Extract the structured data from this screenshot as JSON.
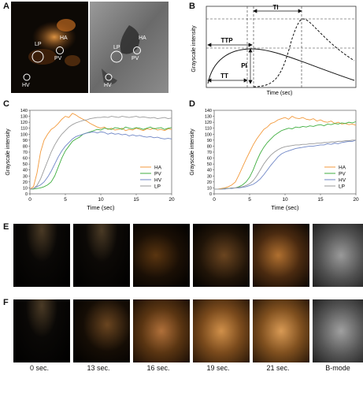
{
  "panels": {
    "A": {
      "letter": "A",
      "labels": [
        "HA",
        "LP",
        "PV",
        "HV",
        "HA",
        "LP",
        "PV",
        "HV"
      ]
    },
    "B": {
      "letter": "B",
      "ylabel": "Grayscale intensity",
      "xlabel": "Time (sec)",
      "labels": {
        "ti": "TI",
        "ttp": "TTP",
        "pi": "PI",
        "tt": "TT"
      }
    },
    "C": {
      "letter": "C"
    },
    "D": {
      "letter": "D"
    },
    "E": {
      "letter": "E"
    },
    "F": {
      "letter": "F"
    }
  },
  "timepoints": [
    "0 sec.",
    "13 sec.",
    "16 sec.",
    "19 sec.",
    "21 sec.",
    "B-mode"
  ],
  "colors": {
    "HA": "#f39a3c",
    "PV": "#3fae3f",
    "HV": "#6f86c6",
    "LP": "#9a9a9a"
  },
  "chart_data": [
    {
      "type": "line",
      "panel": "C",
      "xlabel": "Time (sec)",
      "ylabel": "Grayscale intensity",
      "xlim": [
        0,
        20
      ],
      "ylim": [
        0,
        140
      ],
      "xticks": [
        0,
        5,
        10,
        15,
        20
      ],
      "yticks": [
        0,
        10,
        20,
        30,
        40,
        50,
        60,
        70,
        80,
        90,
        100,
        110,
        120,
        130,
        140
      ],
      "legend": "bottom-right",
      "x": [
        0,
        0.5,
        1,
        1.5,
        2,
        2.5,
        3,
        3.5,
        4,
        4.5,
        5,
        5.5,
        6,
        6.5,
        7,
        7.5,
        8,
        8.5,
        9,
        9.5,
        10,
        10.5,
        11,
        11.5,
        12,
        12.5,
        13,
        13.5,
        14,
        14.5,
        15,
        15.5,
        16,
        16.5,
        17,
        17.5,
        18,
        18.5,
        19,
        19.5,
        20
      ],
      "series": [
        {
          "name": "HA",
          "values": [
            8,
            12,
            35,
            70,
            90,
            100,
            108,
            112,
            118,
            125,
            130,
            128,
            135,
            132,
            128,
            125,
            122,
            118,
            115,
            112,
            110,
            112,
            108,
            110,
            107,
            108,
            110,
            106,
            108,
            107,
            110,
            108,
            106,
            109,
            108,
            110,
            107,
            108,
            106,
            109,
            108
          ]
        },
        {
          "name": "PV",
          "values": [
            8,
            8,
            9,
            10,
            12,
            15,
            20,
            30,
            45,
            60,
            72,
            80,
            88,
            92,
            95,
            100,
            102,
            104,
            106,
            108,
            107,
            110,
            109,
            108,
            111,
            110,
            108,
            112,
            110,
            109,
            111,
            110,
            108,
            110,
            112,
            109,
            110,
            111,
            108,
            110,
            111
          ]
        },
        {
          "name": "HV",
          "values": [
            8,
            9,
            12,
            15,
            20,
            28,
            38,
            50,
            62,
            72,
            80,
            86,
            92,
            96,
            98,
            100,
            102,
            103,
            104,
            102,
            104,
            103,
            100,
            102,
            100,
            101,
            99,
            100,
            97,
            99,
            97,
            98,
            96,
            95,
            96,
            94,
            95,
            93,
            92,
            93,
            92
          ]
        },
        {
          "name": "LP",
          "values": [
            8,
            9,
            14,
            25,
            40,
            55,
            70,
            82,
            92,
            100,
            106,
            112,
            116,
            119,
            121,
            123,
            124,
            126,
            127,
            128,
            128,
            129,
            128,
            130,
            129,
            128,
            130,
            129,
            128,
            129,
            130,
            128,
            129,
            128,
            127,
            128,
            126,
            127,
            128,
            126,
            127
          ]
        }
      ]
    },
    {
      "type": "line",
      "panel": "D",
      "xlabel": "Time (sec)",
      "ylabel": "Grayscale intensity",
      "xlim": [
        0,
        20
      ],
      "ylim": [
        0,
        140
      ],
      "xticks": [
        0,
        5,
        10,
        15,
        20
      ],
      "yticks": [
        0,
        10,
        20,
        30,
        40,
        50,
        60,
        70,
        80,
        90,
        100,
        110,
        120,
        130,
        140
      ],
      "legend": "bottom-right",
      "x": [
        0,
        0.5,
        1,
        1.5,
        2,
        2.5,
        3,
        3.5,
        4,
        4.5,
        5,
        5.5,
        6,
        6.5,
        7,
        7.5,
        8,
        8.5,
        9,
        9.5,
        10,
        10.5,
        11,
        11.5,
        12,
        12.5,
        13,
        13.5,
        14,
        14.5,
        15,
        15.5,
        16,
        16.5,
        17,
        17.5,
        18,
        18.5,
        19,
        19.5,
        20
      ],
      "series": [
        {
          "name": "HA",
          "values": [
            8,
            8,
            9,
            10,
            12,
            15,
            20,
            32,
            45,
            58,
            70,
            82,
            92,
            100,
            108,
            112,
            118,
            120,
            124,
            126,
            128,
            125,
            130,
            127,
            126,
            128,
            125,
            124,
            126,
            122,
            124,
            121,
            120,
            122,
            118,
            120,
            117,
            118,
            116,
            117,
            115
          ]
        },
        {
          "name": "PV",
          "values": [
            8,
            8,
            8,
            9,
            9,
            10,
            10,
            12,
            15,
            20,
            28,
            40,
            55,
            68,
            78,
            86,
            92,
            98,
            102,
            106,
            108,
            110,
            109,
            112,
            111,
            113,
            112,
            114,
            113,
            115,
            116,
            114,
            117,
            116,
            118,
            117,
            119,
            118,
            120,
            119,
            121
          ]
        },
        {
          "name": "HV",
          "values": [
            8,
            8,
            8,
            8,
            9,
            9,
            10,
            10,
            11,
            12,
            14,
            16,
            20,
            25,
            32,
            40,
            48,
            55,
            62,
            67,
            70,
            72,
            74,
            76,
            77,
            78,
            79,
            80,
            80,
            81,
            82,
            82,
            84,
            83,
            85,
            84,
            86,
            87,
            88,
            88,
            90
          ]
        },
        {
          "name": "LP",
          "values": [
            8,
            8,
            8,
            9,
            9,
            10,
            10,
            11,
            12,
            14,
            17,
            22,
            30,
            40,
            50,
            58,
            65,
            70,
            74,
            77,
            79,
            80,
            81,
            82,
            82,
            83,
            83,
            84,
            84,
            85,
            85,
            86,
            86,
            87,
            87,
            88,
            88,
            89,
            89,
            90,
            90
          ]
        }
      ]
    }
  ]
}
